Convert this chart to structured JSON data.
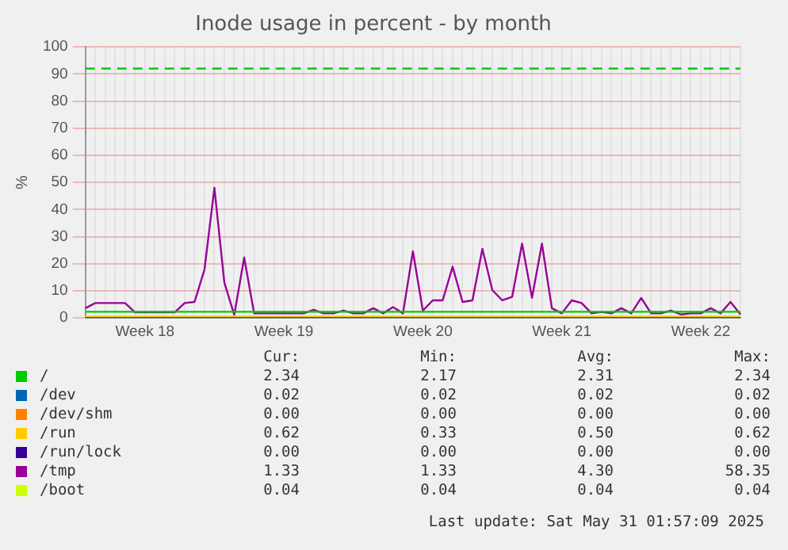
{
  "chart_data": {
    "type": "line",
    "title": "Inode usage in percent - by month",
    "ylabel": "%",
    "categories": [
      null,
      null,
      null,
      null,
      null,
      null,
      "Week 18",
      null,
      null,
      null,
      null,
      null,
      null,
      null,
      null,
      null,
      null,
      null,
      null,
      null,
      "Week 19",
      null,
      null,
      null,
      null,
      null,
      null,
      null,
      null,
      null,
      null,
      null,
      null,
      null,
      "Week 20",
      null,
      null,
      null,
      null,
      null,
      null,
      null,
      null,
      null,
      null,
      null,
      null,
      null,
      "Week 21",
      null,
      null,
      null,
      null,
      null,
      null,
      null,
      null,
      null,
      null,
      null,
      null,
      null,
      "Week 22",
      null,
      null,
      null,
      null
    ],
    "ylim": [
      0,
      100
    ],
    "yticks": [
      0,
      10,
      20,
      30,
      40,
      50,
      60,
      70,
      80,
      90,
      100
    ],
    "grid": true,
    "legend": "bottom",
    "ref_lines": [
      {
        "axis": "y",
        "value": 92,
        "color": "#00cc00",
        "line_style": "dashed"
      }
    ],
    "series": [
      {
        "name": "/",
        "color": "#00cc00",
        "values": [
          2.3,
          2.3,
          2.3,
          2.3,
          2.3,
          2.3,
          2.3,
          2.3,
          2.3,
          2.3,
          2.3,
          2.3,
          2.3,
          2.3,
          2.3,
          2.3,
          2.3,
          2.3,
          2.3,
          2.3,
          2.3,
          2.3,
          2.3,
          2.3,
          2.3,
          2.3,
          2.3,
          2.3,
          2.3,
          2.3,
          2.3,
          2.3,
          2.3,
          2.3,
          2.3,
          2.3,
          2.3,
          2.3,
          2.3,
          2.3,
          2.3,
          2.3,
          2.3,
          2.3,
          2.3,
          2.3,
          2.3,
          2.3,
          2.3,
          2.3,
          2.3,
          2.3,
          2.3,
          2.3,
          2.3,
          2.3,
          2.3,
          2.3,
          2.3,
          2.3,
          2.3,
          2.3,
          2.3,
          2.3,
          2.3,
          2.3,
          2.3
        ]
      },
      {
        "name": "/dev",
        "color": "#0066b3",
        "values": [
          0,
          0,
          0,
          0,
          0,
          0,
          0,
          0,
          0,
          0,
          0,
          0,
          0,
          0,
          0,
          0,
          0,
          0,
          0,
          0,
          0,
          0,
          0,
          0,
          0,
          0,
          0,
          0,
          0,
          0,
          0,
          0,
          0,
          0,
          0,
          0,
          0,
          0,
          0,
          0,
          0,
          0,
          0,
          0,
          0,
          0,
          0,
          0,
          0,
          0,
          0,
          0,
          0,
          0,
          0,
          0,
          0,
          0,
          0,
          0,
          0,
          0,
          0,
          0,
          0,
          0,
          0
        ]
      },
      {
        "name": "/dev/shm",
        "color": "#ff8000",
        "values": [
          null,
          null,
          null,
          null,
          null,
          null,
          null,
          null,
          null,
          null,
          null,
          null,
          null,
          null,
          null,
          null,
          null,
          null,
          null,
          null,
          null,
          null,
          null,
          null,
          null,
          null,
          null,
          null,
          null,
          null,
          null,
          null,
          null,
          null,
          null,
          null,
          null,
          null,
          null,
          null,
          null,
          null,
          null,
          null,
          null,
          null,
          null,
          null,
          null,
          null,
          null,
          null,
          null,
          null,
          null,
          null,
          null,
          null,
          null,
          null,
          null,
          null,
          null,
          null,
          null,
          null,
          null
        ]
      },
      {
        "name": "/run",
        "color": "#ffcc00",
        "values": [
          0.5,
          0.5,
          0.5,
          0.5,
          0.5,
          0.5,
          0.5,
          0.5,
          0.5,
          0.5,
          0.5,
          0.5,
          0.5,
          0.5,
          0.5,
          0.5,
          0.5,
          0.5,
          0.5,
          0.5,
          0.5,
          0.5,
          0.5,
          0.5,
          0.5,
          0.5,
          0.5,
          0.5,
          0.5,
          0.5,
          0.5,
          0.5,
          0.5,
          0.5,
          0.5,
          0.5,
          0.5,
          0.5,
          0.5,
          0.5,
          0.5,
          0.5,
          0.5,
          0.5,
          0.5,
          0.5,
          0.5,
          0.5,
          0.5,
          0.5,
          0.5,
          0.5,
          0.5,
          0.5,
          0.5,
          0.5,
          0.5,
          0.5,
          0.5,
          0.5,
          0.5,
          0.5,
          0.5,
          0.5,
          0.5,
          0.5,
          0.5
        ]
      },
      {
        "name": "/run/lock",
        "color": "#330099",
        "values": [
          null,
          null,
          null,
          null,
          null,
          null,
          null,
          null,
          null,
          null,
          null,
          null,
          null,
          null,
          null,
          null,
          null,
          null,
          null,
          null,
          null,
          null,
          null,
          null,
          null,
          null,
          null,
          null,
          null,
          null,
          null,
          null,
          null,
          null,
          null,
          null,
          null,
          null,
          null,
          null,
          null,
          null,
          null,
          null,
          null,
          null,
          null,
          null,
          null,
          null,
          null,
          null,
          null,
          null,
          null,
          null,
          null,
          null,
          null,
          null,
          null,
          null,
          null,
          null,
          null,
          null,
          null
        ]
      },
      {
        "name": "/tmp",
        "color": "#990099",
        "values": [
          3.6,
          5.5,
          5.5,
          5.5,
          5.5,
          2.1,
          2.1,
          2.1,
          2.1,
          2.1,
          5.5,
          5.9,
          17.9,
          48,
          13.1,
          1.1,
          22.3,
          1.7,
          1.7,
          1.7,
          1.7,
          1.7,
          1.7,
          3,
          1.7,
          1.7,
          2.7,
          1.7,
          1.7,
          3.6,
          1.7,
          4,
          1.7,
          24.6,
          2.7,
          6.5,
          6.5,
          18.9,
          5.9,
          6.5,
          25.5,
          10.3,
          6.5,
          7.8,
          27.4,
          7.4,
          27.4,
          3.6,
          1.7,
          6.5,
          5.5,
          1.7,
          2.2,
          1.7,
          3.6,
          1.7,
          7.4,
          1.7,
          1.7,
          2.7,
          1.3,
          1.7,
          1.7,
          3.6,
          1.7,
          5.9,
          1.3
        ]
      },
      {
        "name": "/boot",
        "color": "#ccff00",
        "values": [
          null,
          null,
          null,
          null,
          null,
          null,
          null,
          null,
          null,
          null,
          null,
          null,
          null,
          null,
          null,
          null,
          null,
          null,
          null,
          null,
          null,
          null,
          null,
          null,
          null,
          null,
          null,
          null,
          null,
          null,
          null,
          null,
          null,
          null,
          null,
          null,
          null,
          null,
          null,
          null,
          null,
          null,
          null,
          null,
          null,
          null,
          null,
          null,
          null,
          null,
          null,
          null,
          null,
          null,
          null,
          null,
          null,
          null,
          null,
          null,
          null,
          null,
          null,
          null,
          null,
          null,
          null
        ]
      }
    ],
    "annotations": [
      "Cur:",
      "Min:",
      "Avg:",
      "Max:",
      "2.34",
      "2.17",
      "2.31",
      "2.34",
      "0.02",
      "0.02",
      "0.02",
      "0.02",
      "0.00",
      "0.00",
      "0.00",
      "0.00",
      "0.62",
      "0.33",
      "0.50",
      "0.62",
      "0.00",
      "0.00",
      "0.00",
      "0.00",
      "1.33",
      "1.33",
      "4.30",
      "58.35",
      "0.04",
      "0.04",
      "0.04",
      "0.04",
      "Last update: Sat May 31 01:57:09 2025"
    ]
  }
}
